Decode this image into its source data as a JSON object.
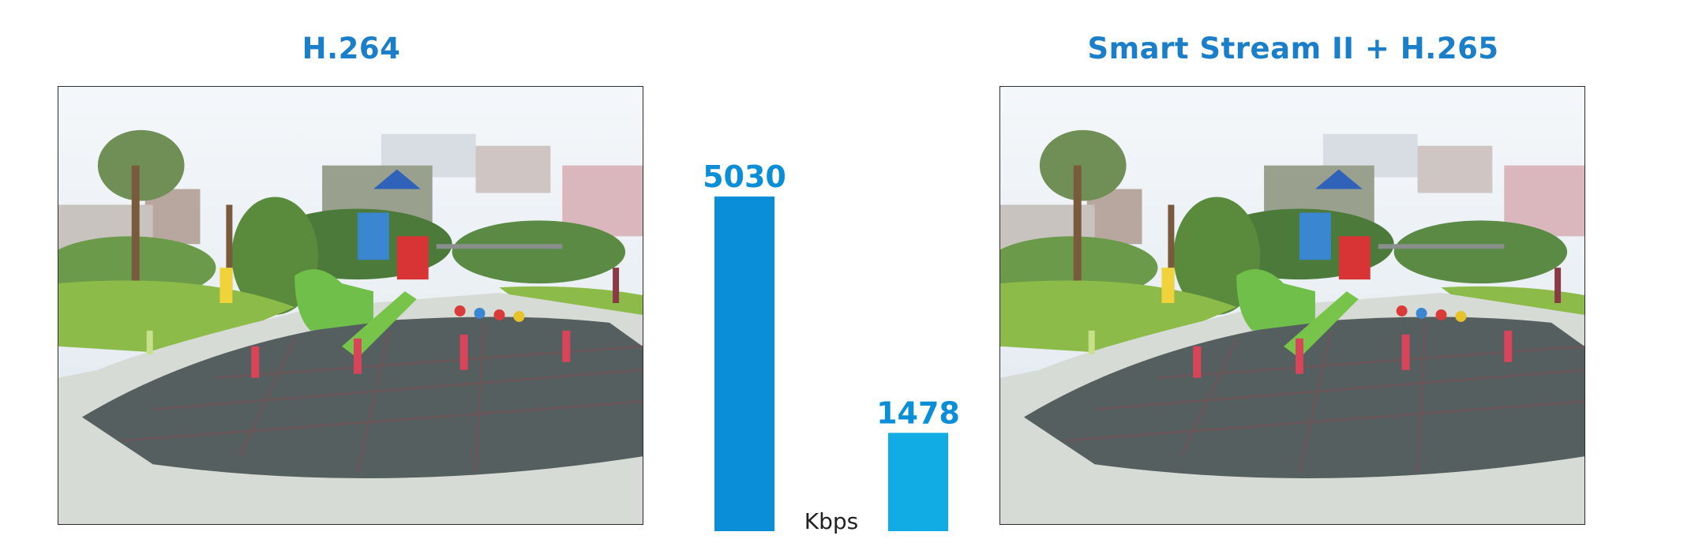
{
  "colors": {
    "heading": "#1a7fc8",
    "bar_h264": "#0a8ed8",
    "bar_h265": "#12ace4",
    "value_label": "#0a8ed8",
    "unit": "#222222"
  },
  "left_panel": {
    "title": "H.264",
    "image_label": "Playground scene encoded with H.264"
  },
  "right_panel": {
    "title": "Smart Stream II + H.265",
    "image_label": "Playground scene encoded with Smart Stream II + H.265"
  },
  "chart_data": {
    "type": "bar",
    "categories": [
      "H.264",
      "Smart Stream II + H.265"
    ],
    "values": [
      5030,
      1478
    ],
    "data_labels": [
      "5030",
      "1478"
    ],
    "unit": "Kbps",
    "ylim": [
      0,
      5030
    ],
    "grid": false,
    "legend": "none"
  }
}
